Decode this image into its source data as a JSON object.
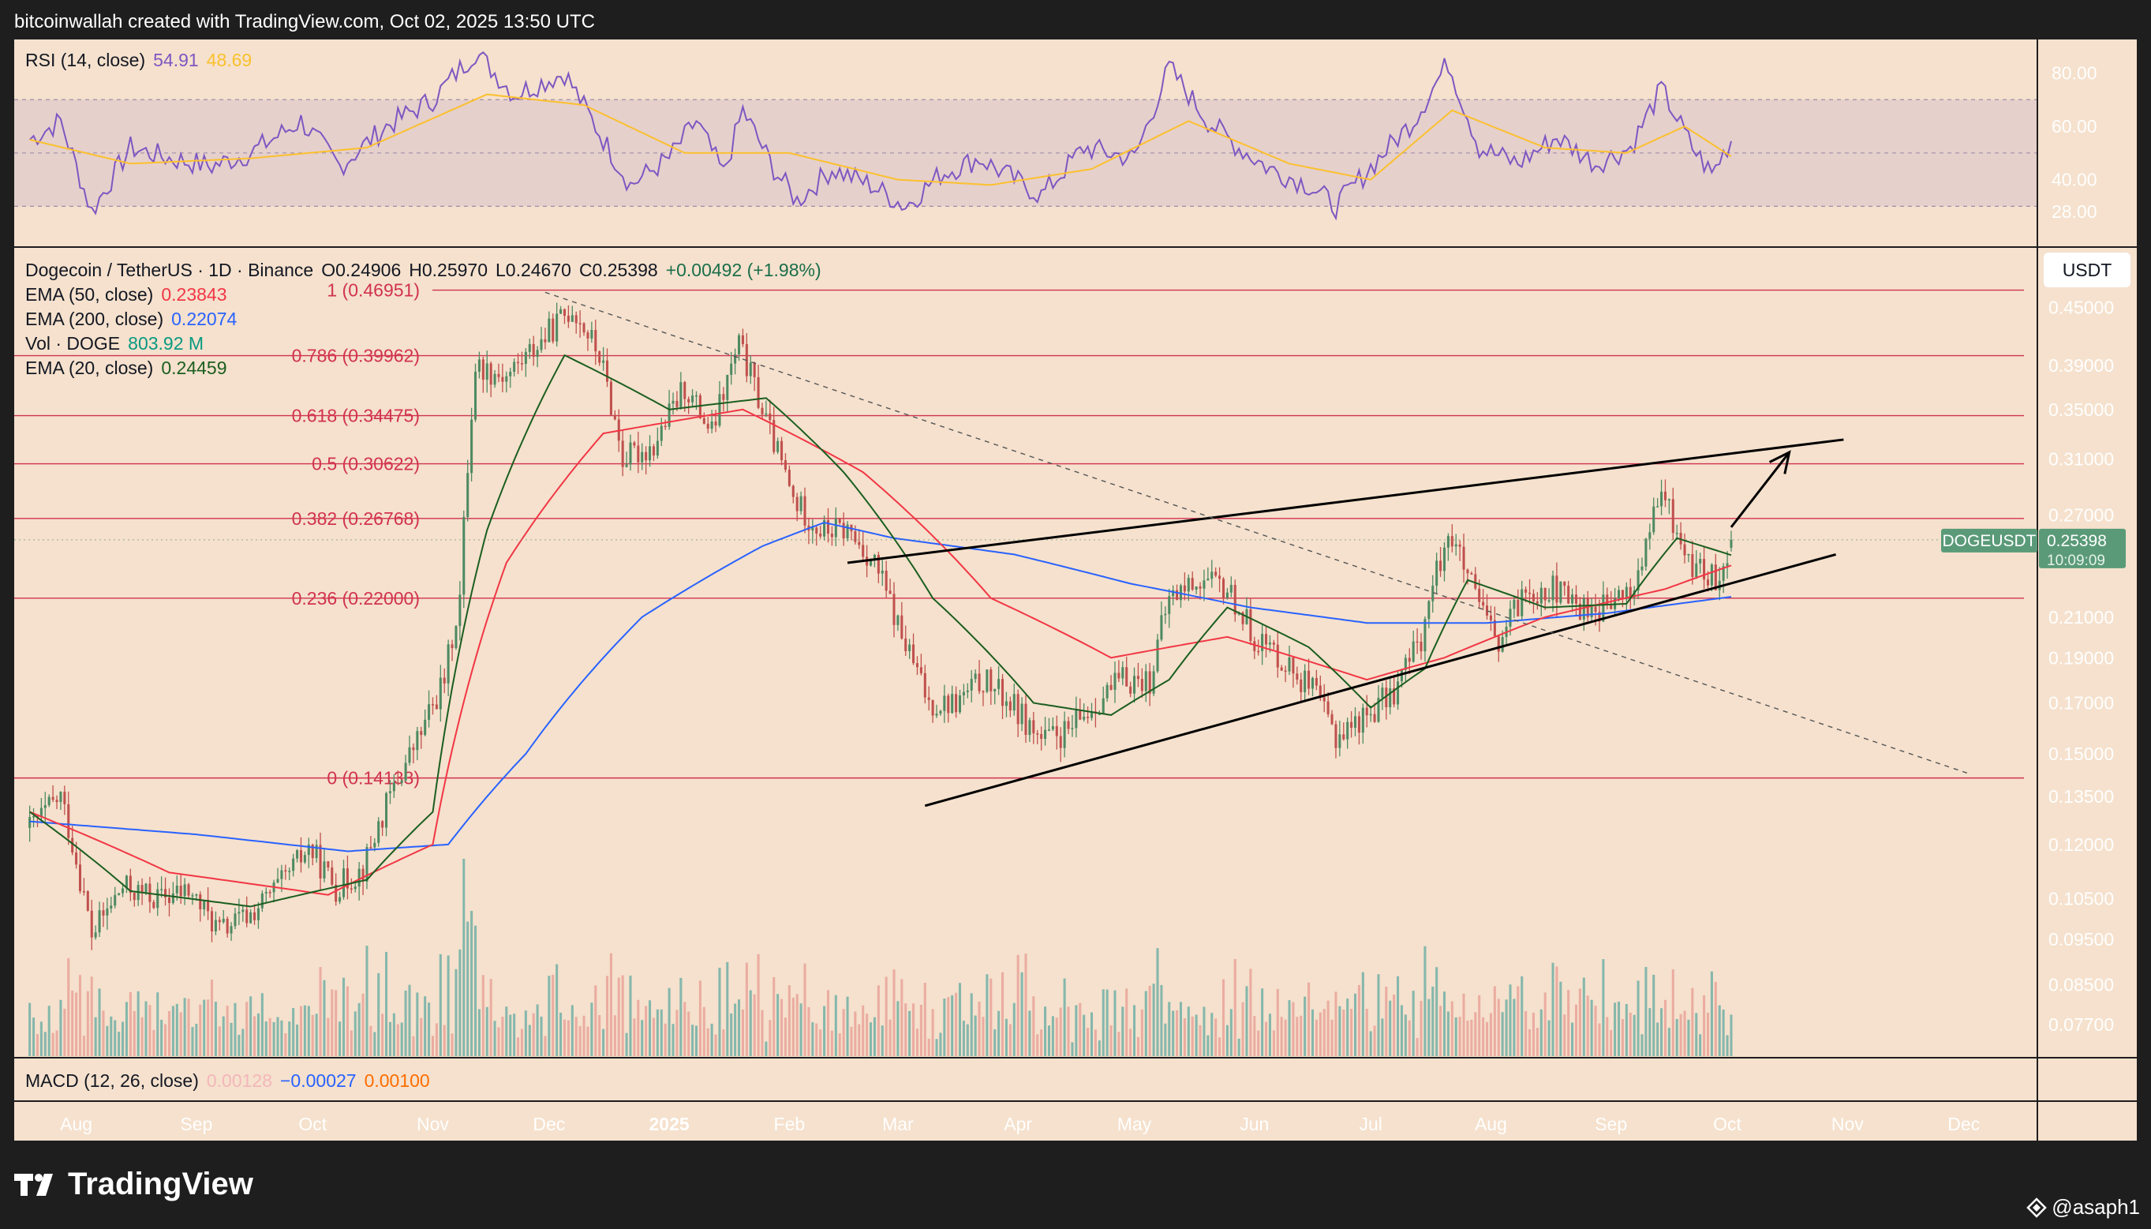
{
  "header": {
    "credit": "bitcoinwallah created with TradingView.com, Oct 02, 2025 13:50 UTC"
  },
  "branding": {
    "logo_text": "TradingView",
    "author_handle": "@asaph1"
  },
  "currency_button": "USDT",
  "legend": {
    "symbol": "Dogecoin / TetherUS · 1D · Binance",
    "ohlc": {
      "o": "O0.24906",
      "h": "H0.25970",
      "l": "L0.24670",
      "c": "C0.25398",
      "change": "+0.00492 (+1.98%)"
    },
    "ema50": {
      "label": "EMA (50, close)",
      "value": "0.23843",
      "color": "#f23645"
    },
    "ema200": {
      "label": "EMA (200, close)",
      "value": "0.22074",
      "color": "#2962ff"
    },
    "vol": {
      "label": "Vol · DOGE",
      "value": "803.92 M",
      "color": "#089981"
    },
    "ema20": {
      "label": "EMA (20, close)",
      "value": "0.24459",
      "color": "#1b5e20"
    }
  },
  "rsi": {
    "label": "RSI (14, close)",
    "value": "54.91",
    "ma_value": "48.69",
    "ticks": [
      "80.00",
      "60.00",
      "40.00",
      "28.00"
    ]
  },
  "macd": {
    "label": "MACD (12, 26, close)",
    "v1": "0.00128",
    "v2": "−0.00027",
    "v3": "0.00100"
  },
  "price_tag": {
    "symbol": "DOGEUSDT",
    "price": "0.25398",
    "countdown": "10:09:09"
  },
  "colors": {
    "background": "#f5e1cd",
    "frame": "#1e1e1e",
    "up": "#4e8a62",
    "down": "#c0504d",
    "fib": "#d1334f",
    "rsi_line": "#7e57c2",
    "rsi_ma": "#fbc02d"
  },
  "chart_data": {
    "type": "candlestick",
    "title": "Dogecoin / TetherUS · 1D · Binance",
    "y_scale": "log",
    "ylim": [
      0.071,
      0.52
    ],
    "y_ticks": [
      "0.45000",
      "0.39000",
      "0.35000",
      "0.31000",
      "0.27000",
      "0.21000",
      "0.19000",
      "0.17000",
      "0.15000",
      "0.13500",
      "0.12000",
      "0.10500",
      "0.09500",
      "0.08500",
      "0.07700"
    ],
    "x_ticks": [
      "Aug",
      "Sep",
      "Oct",
      "Nov",
      "Dec",
      "2025",
      "Feb",
      "Mar",
      "Apr",
      "May",
      "Jun",
      "Jul",
      "Aug",
      "Sep",
      "Oct",
      "Nov",
      "Dec"
    ],
    "price_path": [
      [
        "2024-07-20",
        0.125
      ],
      [
        "2024-07-28",
        0.135
      ],
      [
        "2024-08-05",
        0.096
      ],
      [
        "2024-08-13",
        0.108
      ],
      [
        "2024-08-22",
        0.105
      ],
      [
        "2024-08-30",
        0.107
      ],
      [
        "2024-09-07",
        0.097
      ],
      [
        "2024-09-15",
        0.101
      ],
      [
        "2024-09-23",
        0.109
      ],
      [
        "2024-09-30",
        0.119
      ],
      [
        "2024-10-07",
        0.108
      ],
      [
        "2024-10-14",
        0.113
      ],
      [
        "2024-10-21",
        0.135
      ],
      [
        "2024-10-29",
        0.158
      ],
      [
        "2024-11-04",
        0.18
      ],
      [
        "2024-11-08",
        0.22
      ],
      [
        "2024-11-12",
        0.39
      ],
      [
        "2024-11-20",
        0.38
      ],
      [
        "2024-11-28",
        0.41
      ],
      [
        "2024-12-07",
        0.45
      ],
      [
        "2024-12-14",
        0.4
      ],
      [
        "2024-12-20",
        0.31
      ],
      [
        "2024-12-28",
        0.32
      ],
      [
        "2025-01-05",
        0.37
      ],
      [
        "2025-01-12",
        0.33
      ],
      [
        "2025-01-19",
        0.41
      ],
      [
        "2025-01-26",
        0.34
      ],
      [
        "2025-02-02",
        0.28
      ],
      [
        "2025-02-09",
        0.26
      ],
      [
        "2025-02-16",
        0.26
      ],
      [
        "2025-02-23",
        0.24
      ],
      [
        "2025-03-02",
        0.2
      ],
      [
        "2025-03-09",
        0.17
      ],
      [
        "2025-03-16",
        0.17
      ],
      [
        "2025-03-23",
        0.18
      ],
      [
        "2025-03-30",
        0.17
      ],
      [
        "2025-04-07",
        0.155
      ],
      [
        "2025-04-14",
        0.158
      ],
      [
        "2025-04-21",
        0.17
      ],
      [
        "2025-04-28",
        0.18
      ],
      [
        "2025-05-05",
        0.18
      ],
      [
        "2025-05-10",
        0.22
      ],
      [
        "2025-05-17",
        0.23
      ],
      [
        "2025-05-25",
        0.225
      ],
      [
        "2025-06-01",
        0.2
      ],
      [
        "2025-06-08",
        0.19
      ],
      [
        "2025-06-16",
        0.175
      ],
      [
        "2025-06-22",
        0.157
      ],
      [
        "2025-06-30",
        0.165
      ],
      [
        "2025-07-07",
        0.175
      ],
      [
        "2025-07-14",
        0.2
      ],
      [
        "2025-07-21",
        0.26
      ],
      [
        "2025-07-28",
        0.22
      ],
      [
        "2025-08-03",
        0.195
      ],
      [
        "2025-08-10",
        0.225
      ],
      [
        "2025-08-17",
        0.225
      ],
      [
        "2025-08-24",
        0.215
      ],
      [
        "2025-08-31",
        0.215
      ],
      [
        "2025-09-07",
        0.225
      ],
      [
        "2025-09-14",
        0.285
      ],
      [
        "2025-09-21",
        0.24
      ],
      [
        "2025-09-28",
        0.23
      ],
      [
        "2025-10-02",
        0.25398
      ]
    ],
    "ema20_path": [
      [
        "2024-07-20",
        0.13
      ],
      [
        "2024-08-15",
        0.107
      ],
      [
        "2024-09-15",
        0.103
      ],
      [
        "2024-10-15",
        0.11
      ],
      [
        "2024-11-01",
        0.13
      ],
      [
        "2024-11-15",
        0.26
      ],
      [
        "2024-12-05",
        0.4
      ],
      [
        "2025-01-01",
        0.35
      ],
      [
        "2025-01-26",
        0.36
      ],
      [
        "2025-02-15",
        0.3
      ],
      [
        "2025-03-10",
        0.22
      ],
      [
        "2025-04-05",
        0.17
      ],
      [
        "2025-04-25",
        0.165
      ],
      [
        "2025-05-10",
        0.18
      ],
      [
        "2025-05-25",
        0.215
      ],
      [
        "2025-06-15",
        0.195
      ],
      [
        "2025-07-01",
        0.168
      ],
      [
        "2025-07-15",
        0.185
      ],
      [
        "2025-07-26",
        0.23
      ],
      [
        "2025-08-15",
        0.215
      ],
      [
        "2025-09-05",
        0.217
      ],
      [
        "2025-09-18",
        0.255
      ],
      [
        "2025-10-02",
        0.24459
      ]
    ],
    "ema50_path": [
      [
        "2024-07-20",
        0.13
      ],
      [
        "2024-08-25",
        0.112
      ],
      [
        "2024-10-05",
        0.106
      ],
      [
        "2024-11-01",
        0.12
      ],
      [
        "2024-11-20",
        0.24
      ],
      [
        "2024-12-15",
        0.33
      ],
      [
        "2025-01-20",
        0.35
      ],
      [
        "2025-02-20",
        0.3
      ],
      [
        "2025-03-25",
        0.22
      ],
      [
        "2025-04-25",
        0.19
      ],
      [
        "2025-05-25",
        0.2
      ],
      [
        "2025-06-30",
        0.18
      ],
      [
        "2025-07-20",
        0.19
      ],
      [
        "2025-08-15",
        0.21
      ],
      [
        "2025-09-15",
        0.225
      ],
      [
        "2025-10-02",
        0.23843
      ]
    ],
    "ema200_path": [
      [
        "2024-07-20",
        0.127
      ],
      [
        "2024-09-01",
        0.123
      ],
      [
        "2024-10-10",
        0.118
      ],
      [
        "2024-11-05",
        0.12
      ],
      [
        "2024-11-25",
        0.15
      ],
      [
        "2024-12-25",
        0.21
      ],
      [
        "2025-01-25",
        0.25
      ],
      [
        "2025-02-10",
        0.265
      ],
      [
        "2025-02-28",
        0.255
      ],
      [
        "2025-03-31",
        0.245
      ],
      [
        "2025-04-30",
        0.228
      ],
      [
        "2025-05-31",
        0.215
      ],
      [
        "2025-06-30",
        0.207
      ],
      [
        "2025-07-31",
        0.207
      ],
      [
        "2025-08-31",
        0.212
      ],
      [
        "2025-10-02",
        0.22074
      ]
    ],
    "fib_levels": [
      {
        "label": "1 (0.46951)",
        "value": 0.46951
      },
      {
        "label": "0.786 (0.39962)",
        "value": 0.39962
      },
      {
        "label": "0.618 (0.34475)",
        "value": 0.34475
      },
      {
        "label": "0.5 (0.30622)",
        "value": 0.30622
      },
      {
        "label": "0.382 (0.26768)",
        "value": 0.26768
      },
      {
        "label": "0.236 (0.22000)",
        "value": 0.22
      },
      {
        "label": "0 (0.14133)",
        "value": 0.14133
      }
    ],
    "trendlines": [
      {
        "style": "solid",
        "from": [
          "2025-02-16",
          0.24
        ],
        "to": [
          "2025-10-31",
          0.325
        ]
      },
      {
        "style": "solid",
        "from": [
          "2025-03-08",
          0.132
        ],
        "to": [
          "2025-10-29",
          0.245
        ]
      },
      {
        "style": "dashed",
        "from": [
          "2024-11-30",
          0.467
        ],
        "to": [
          "2025-12-02",
          0.143
        ]
      }
    ],
    "projection_arrow": {
      "from": [
        "2025-10-02",
        0.262
      ],
      "to": [
        "2025-10-17",
        0.315
      ]
    },
    "rsi_path": [
      [
        "2024-07-20",
        55
      ],
      [
        "2024-07-28",
        62
      ],
      [
        "2024-08-05",
        28
      ],
      [
        "2024-08-15",
        52
      ],
      [
        "2024-08-25",
        48
      ],
      [
        "2024-09-05",
        45
      ],
      [
        "2024-09-15",
        50
      ],
      [
        "2024-09-28",
        62
      ],
      [
        "2024-10-08",
        45
      ],
      [
        "2024-10-20",
        60
      ],
      [
        "2024-11-01",
        70
      ],
      [
        "2024-11-12",
        88
      ],
      [
        "2024-11-22",
        72
      ],
      [
        "2024-12-05",
        80
      ],
      [
        "2024-12-15",
        55
      ],
      [
        "2024-12-22",
        38
      ],
      [
        "2025-01-01",
        48
      ],
      [
        "2025-01-08",
        62
      ],
      [
        "2025-01-15",
        42
      ],
      [
        "2025-01-20",
        66
      ],
      [
        "2025-01-28",
        44
      ],
      [
        "2025-02-03",
        32
      ],
      [
        "2025-02-12",
        44
      ],
      [
        "2025-02-22",
        38
      ],
      [
        "2025-03-03",
        30
      ],
      [
        "2025-03-12",
        42
      ],
      [
        "2025-03-22",
        48
      ],
      [
        "2025-04-07",
        34
      ],
      [
        "2025-04-18",
        52
      ],
      [
        "2025-05-01",
        48
      ],
      [
        "2025-05-10",
        82
      ],
      [
        "2025-05-20",
        62
      ],
      [
        "2025-05-28",
        52
      ],
      [
        "2025-06-05",
        44
      ],
      [
        "2025-06-15",
        38
      ],
      [
        "2025-06-22",
        30
      ],
      [
        "2025-07-03",
        48
      ],
      [
        "2025-07-12",
        62
      ],
      [
        "2025-07-21",
        84
      ],
      [
        "2025-07-29",
        52
      ],
      [
        "2025-08-08",
        46
      ],
      [
        "2025-08-18",
        56
      ],
      [
        "2025-08-28",
        46
      ],
      [
        "2025-09-06",
        52
      ],
      [
        "2025-09-14",
        74
      ],
      [
        "2025-09-22",
        52
      ],
      [
        "2025-09-27",
        42
      ],
      [
        "2025-10-02",
        54.91
      ]
    ],
    "rsi_ma_path": [
      [
        "2024-07-20",
        55
      ],
      [
        "2024-08-15",
        46
      ],
      [
        "2024-09-15",
        48
      ],
      [
        "2024-10-15",
        52
      ],
      [
        "2024-11-15",
        72
      ],
      [
        "2024-12-10",
        68
      ],
      [
        "2025-01-05",
        50
      ],
      [
        "2025-02-01",
        50
      ],
      [
        "2025-03-01",
        40
      ],
      [
        "2025-03-25",
        38
      ],
      [
        "2025-04-20",
        44
      ],
      [
        "2025-05-15",
        62
      ],
      [
        "2025-06-10",
        46
      ],
      [
        "2025-07-01",
        40
      ],
      [
        "2025-07-22",
        66
      ],
      [
        "2025-08-15",
        52
      ],
      [
        "2025-09-05",
        50
      ],
      [
        "2025-09-20",
        60
      ],
      [
        "2025-10-02",
        48.69
      ]
    ],
    "rsi_bands": {
      "upper": 70,
      "mid": 50,
      "lower": 30
    }
  }
}
